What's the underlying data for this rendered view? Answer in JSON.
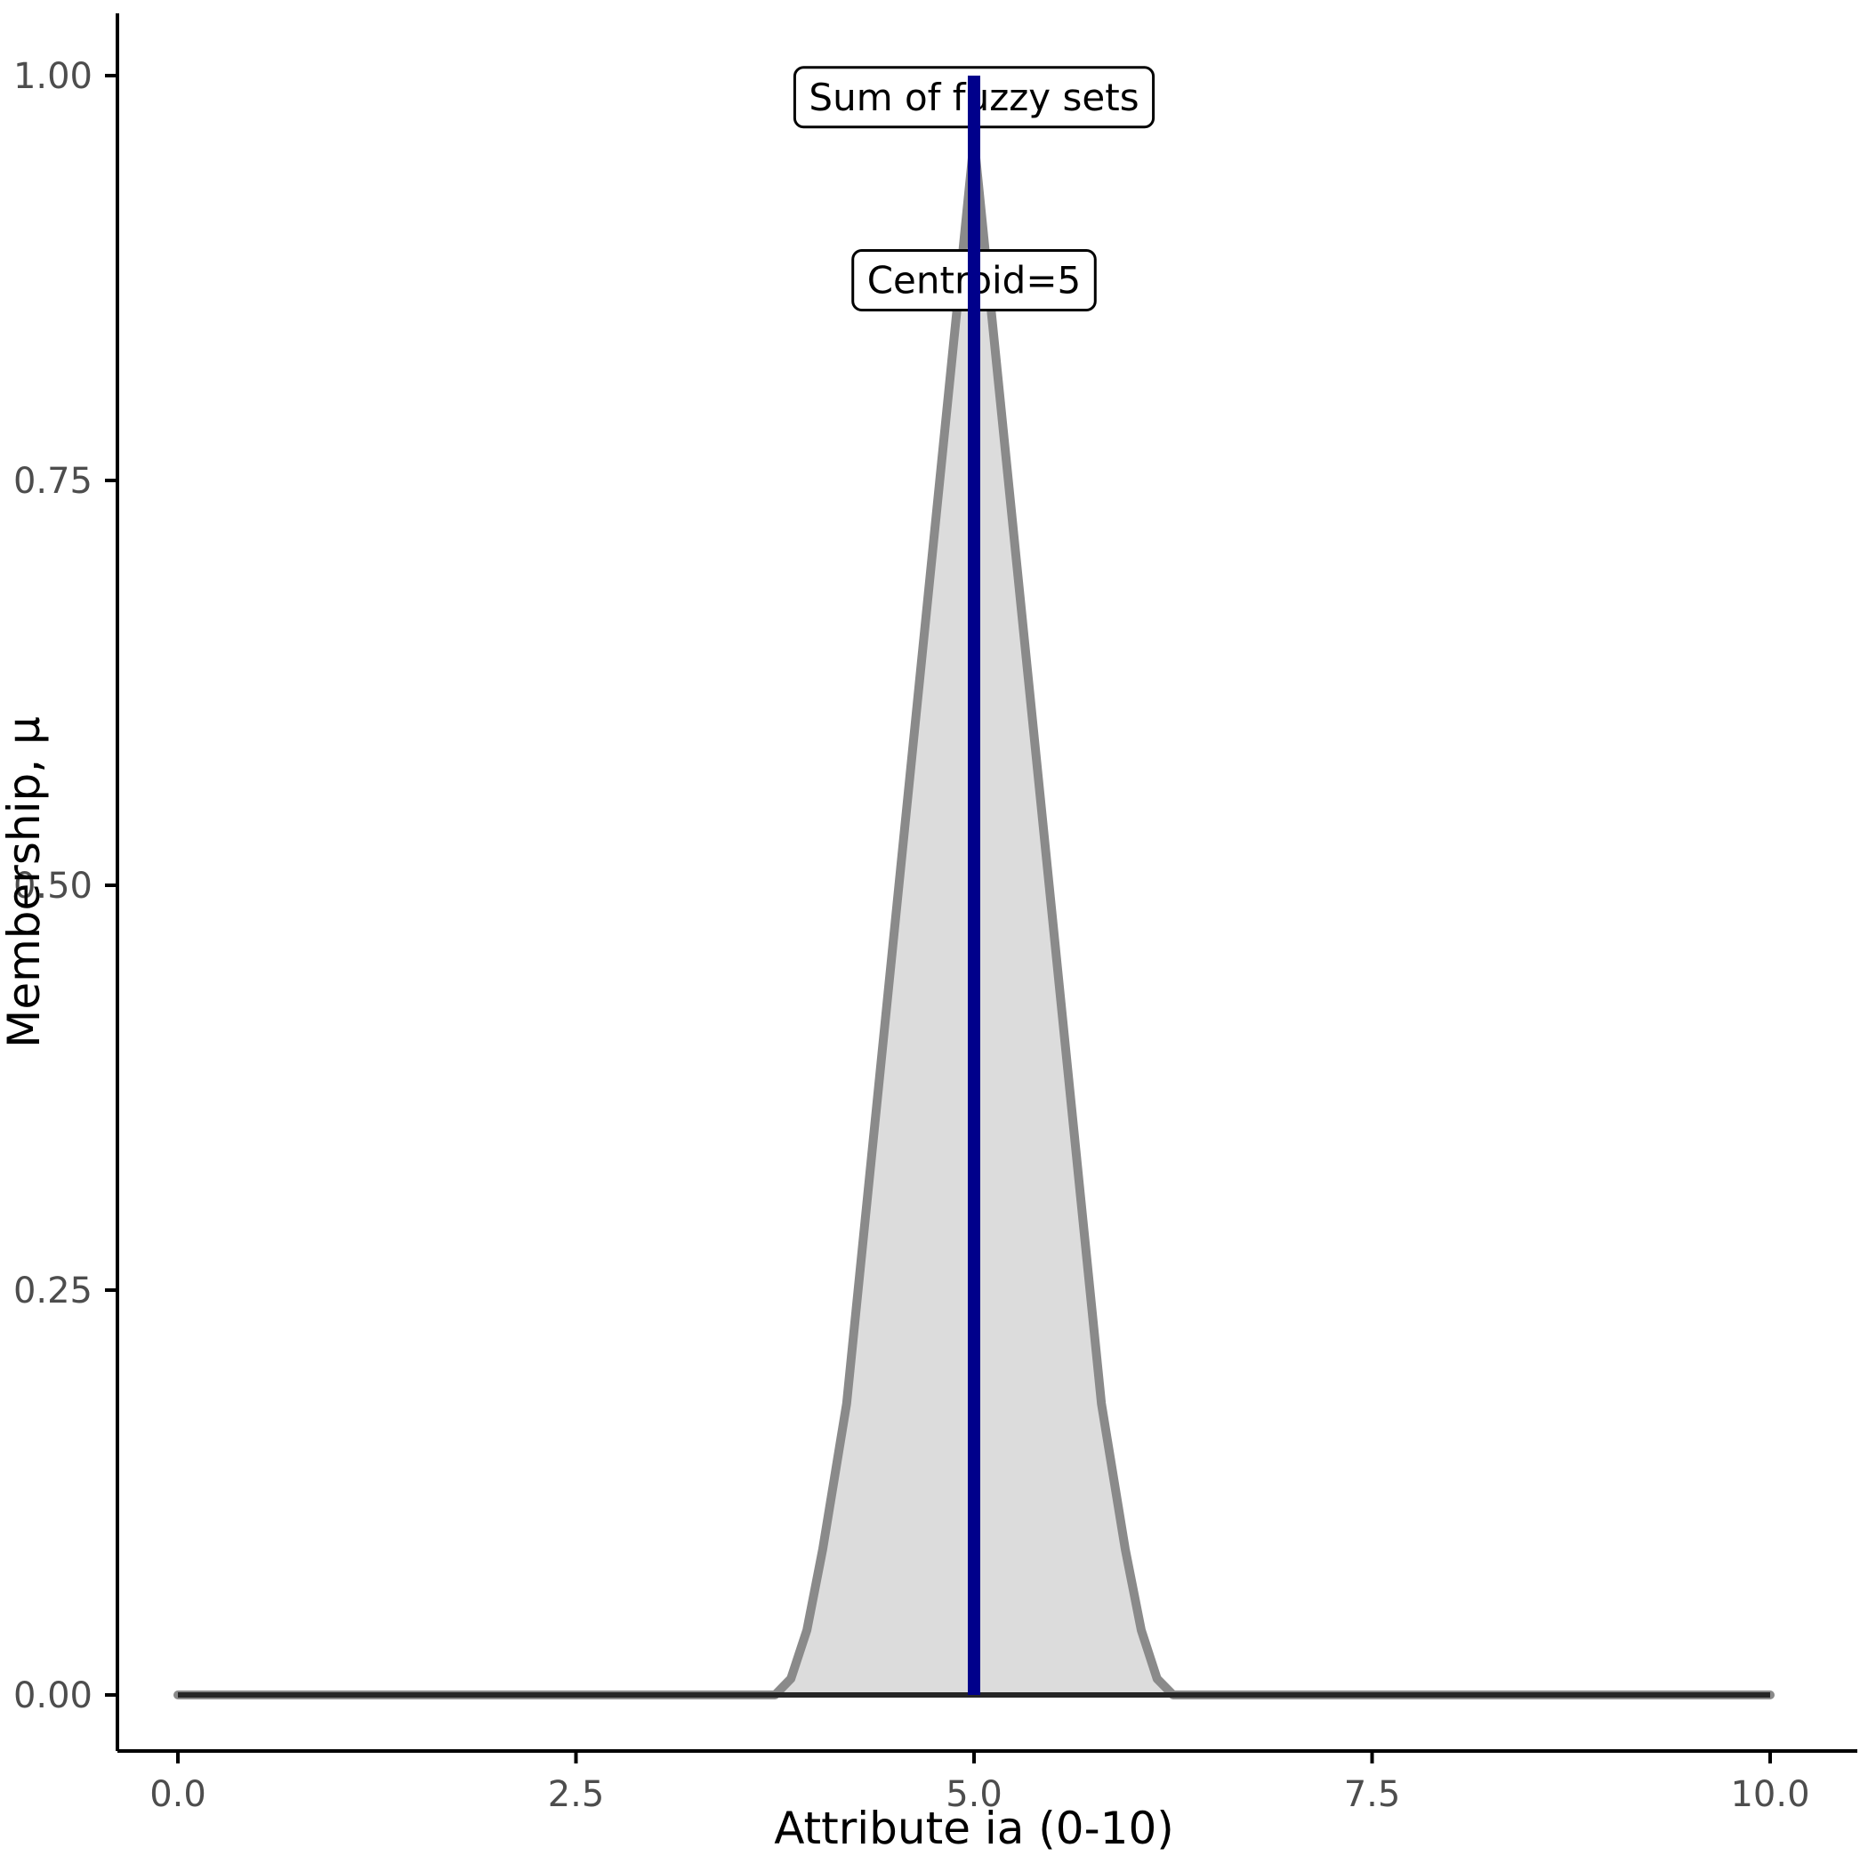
{
  "chart_data": {
    "type": "area",
    "title": "",
    "xlabel": "Attribute ia (0-10)",
    "ylabel": "Membership, μ",
    "xlim": [
      0,
      10
    ],
    "ylim": [
      0,
      1
    ],
    "grid": false,
    "legend": "none",
    "x_ticks": {
      "values": [
        0,
        2.5,
        5,
        7.5,
        10
      ],
      "labels": [
        "0.0",
        "2.5",
        "5.0",
        "7.5",
        "10.0"
      ]
    },
    "y_ticks": {
      "values": [
        0,
        0.25,
        0.5,
        0.75,
        1
      ],
      "labels": [
        "0.00",
        "0.25",
        "0.50",
        "0.75",
        "1.00"
      ]
    },
    "series": [
      {
        "name": "Sum of fuzzy sets",
        "x": [
          0,
          3.75,
          3.85,
          3.95,
          4.05,
          4.2,
          5.0,
          5.8,
          5.95,
          6.05,
          6.15,
          6.25,
          10
        ],
        "y": [
          0,
          0,
          0.01,
          0.04,
          0.09,
          0.18,
          0.96,
          0.18,
          0.09,
          0.04,
          0.01,
          0,
          0
        ],
        "fill": "#dcdcdc",
        "stroke": "#8a8a8a"
      }
    ],
    "baseline": {
      "y": 0,
      "color": "#262626"
    },
    "centroid_line": {
      "x": 5,
      "y0": 0,
      "y1": 1,
      "color": "#00008b",
      "label": "Centroid=5"
    },
    "annotations": [
      {
        "text": "Sum of fuzzy sets",
        "x": 5,
        "y": 0.985
      },
      {
        "text": "Centroid=5",
        "x": 5,
        "y": 0.872
      }
    ]
  },
  "colors": {
    "axis_text": "#4d4d4d",
    "axis_title": "#000000",
    "axis_line": "#000000",
    "annotation_text": "#000000",
    "label_box_fill": "#ffffff",
    "label_box_border": "#000000"
  }
}
